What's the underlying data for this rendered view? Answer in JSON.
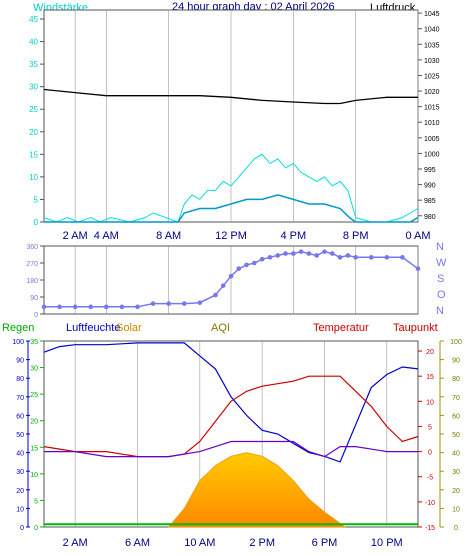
{
  "header": {
    "wind_label": "Windstärke",
    "title": "24 hour graph day : 02 April 2026",
    "pressure_label": "Luftdruck"
  },
  "dir_labels": [
    "N",
    "W",
    "S",
    "O",
    "N"
  ],
  "bottom_labels": {
    "rain": "Regen",
    "humidity": "Luftfeuchte",
    "solar": "Solar",
    "aqi": "AQI",
    "temp": "Temperatur",
    "dew": "Taupunkt"
  },
  "colors": {
    "wind": "#00dddd",
    "gust": "#00dddd",
    "pressure": "#000000",
    "direction": "#7777ee",
    "humidity": "#0000cc",
    "temperature": "#cc0000",
    "dewpoint": "#6600cc",
    "solar": "#ffaa00",
    "rain": "#00bb00",
    "aqi": "#887700",
    "grid": "#999999"
  },
  "chart_data": [
    {
      "type": "line",
      "name": "wind_pressure",
      "x_ticks": [
        "2 AM",
        "4 AM",
        "8 AM",
        "12 PM",
        "4 PM",
        "8 PM",
        "0 AM"
      ],
      "x_tick_hours": [
        2,
        4,
        8,
        12,
        16,
        20,
        24
      ],
      "left_axis": {
        "ticks": [
          0,
          5,
          10,
          15,
          20,
          25,
          30,
          35,
          40,
          45
        ],
        "ylim": [
          0,
          47
        ]
      },
      "right_axis": {
        "ticks": [
          980,
          985,
          990,
          995,
          1000,
          1005,
          1010,
          1015,
          1020,
          1025,
          1030,
          1035,
          1040,
          1045
        ],
        "ylim": [
          978,
          1046
        ]
      },
      "pressure": {
        "hours": [
          0,
          2,
          4,
          6,
          8,
          10,
          12,
          14,
          16,
          18,
          19,
          20,
          22,
          24
        ],
        "values": [
          1020.5,
          1019.5,
          1018.5,
          1018.5,
          1018.5,
          1018.5,
          1018,
          1017,
          1016.5,
          1016,
          1016,
          1017,
          1018,
          1018
        ]
      },
      "wind_avg": {
        "hours": [
          0,
          1,
          2,
          3,
          4,
          5,
          6,
          7,
          8,
          8.6,
          9,
          10,
          11,
          12,
          13,
          14,
          15,
          16,
          17,
          18,
          19,
          19.6,
          20,
          21,
          22,
          23,
          23.5,
          24
        ],
        "values": [
          0,
          0,
          0,
          0,
          0,
          0,
          0,
          0,
          0,
          0,
          2,
          3,
          3,
          4,
          5,
          5,
          6,
          5,
          4,
          4,
          3,
          1,
          0,
          0,
          0,
          0,
          0,
          1
        ]
      },
      "wind_gust": {
        "hours": [
          0,
          0.8,
          1.5,
          2.2,
          3,
          3.6,
          4.3,
          5.5,
          6.5,
          7,
          8.6,
          9,
          9.5,
          10,
          10.5,
          11,
          11.5,
          12,
          12.5,
          13,
          13.5,
          14,
          14.5,
          15,
          15.5,
          16,
          16.5,
          17,
          17.5,
          18,
          18.5,
          19,
          19.5,
          20,
          21,
          22,
          23,
          23.5,
          24
        ],
        "values": [
          1,
          0,
          1,
          0,
          1,
          0,
          1,
          0,
          1,
          2,
          0,
          4,
          6,
          5,
          7,
          7,
          9,
          8,
          10,
          12,
          14,
          15,
          13,
          14,
          12,
          13,
          11,
          10,
          9,
          10,
          8,
          9,
          7,
          1,
          0,
          0,
          1,
          2,
          3
        ]
      }
    },
    {
      "type": "scatter",
      "name": "wind_direction",
      "y_ticks": [
        0,
        90,
        180,
        270,
        360
      ],
      "ylim": [
        0,
        360
      ],
      "hours": [
        0,
        1,
        2,
        3,
        4,
        5,
        6,
        7,
        8,
        9,
        10,
        11,
        11.5,
        12,
        12.5,
        13,
        13.5,
        14,
        14.5,
        15,
        15.5,
        16,
        16.5,
        17,
        17.5,
        18,
        18.5,
        19,
        19.5,
        20,
        21,
        22,
        23,
        24
      ],
      "values": [
        38,
        38,
        38,
        38,
        38,
        38,
        38,
        55,
        55,
        55,
        60,
        100,
        150,
        200,
        240,
        260,
        270,
        290,
        300,
        310,
        320,
        320,
        330,
        320,
        310,
        330,
        320,
        300,
        310,
        300,
        300,
        300,
        300,
        240
      ]
    },
    {
      "type": "area",
      "name": "bottom_panel",
      "x_ticks": [
        "2 AM",
        "6 AM",
        "10 AM",
        "2 PM",
        "6 PM",
        "10 PM"
      ],
      "x_tick_hours": [
        2,
        6,
        10,
        14,
        18,
        22
      ],
      "humidity_axis": {
        "ticks": [
          0,
          10,
          20,
          30,
          40,
          50,
          60,
          70,
          80,
          90,
          100
        ],
        "ylim": [
          0,
          100
        ]
      },
      "rain_axis": {
        "ticks": [
          0,
          5,
          10,
          15,
          20,
          25,
          30,
          35
        ],
        "ylim": [
          0,
          35
        ]
      },
      "temp_axis": {
        "ticks": [
          -15,
          -10,
          -5,
          0,
          5,
          10,
          15,
          20
        ],
        "ylim": [
          -15,
          22
        ]
      },
      "solar_axis": {
        "ticks": [
          0,
          10,
          20,
          30,
          40,
          50,
          60,
          70,
          80,
          90,
          100
        ],
        "ylim": [
          0,
          100
        ]
      },
      "humidity": {
        "hours": [
          0,
          1,
          2,
          4,
          6,
          7,
          8,
          9,
          10,
          11,
          12,
          13,
          14,
          15,
          16,
          17,
          18,
          19,
          20,
          21,
          22,
          23,
          24
        ],
        "values": [
          94,
          97,
          98,
          98,
          99,
          99,
          99,
          99,
          92,
          85,
          70,
          60,
          52,
          50,
          45,
          40,
          38,
          35,
          55,
          75,
          82,
          86,
          85
        ]
      },
      "temperature": {
        "hours": [
          0,
          2,
          4,
          6,
          8,
          9,
          10,
          11,
          12,
          13,
          14,
          16,
          17,
          18,
          19,
          20,
          21,
          22,
          23,
          24
        ],
        "values": [
          1,
          0,
          0,
          -1,
          -1,
          -0.5,
          2,
          6,
          10,
          12,
          13,
          14,
          15,
          15,
          15,
          12,
          9,
          5,
          2,
          3
        ]
      },
      "dewpoint": {
        "hours": [
          0,
          2,
          4,
          6,
          8,
          10,
          11,
          12,
          13,
          14,
          15,
          16,
          17,
          18,
          19,
          20,
          22,
          24
        ],
        "values": [
          0,
          0,
          -1,
          -1,
          -1,
          0,
          1,
          2,
          2,
          2,
          2,
          2,
          0,
          -1,
          1,
          1,
          0,
          0
        ]
      },
      "solar": {
        "hours": [
          8,
          9,
          10,
          11,
          12,
          13,
          14,
          15,
          16,
          17,
          18,
          19,
          19.3
        ],
        "values": [
          0,
          10,
          25,
          33,
          38,
          40,
          38,
          33,
          25,
          15,
          8,
          2,
          0
        ]
      },
      "rain": {
        "hours": [
          0,
          24
        ],
        "values": [
          0.5,
          0.5
        ]
      }
    }
  ]
}
